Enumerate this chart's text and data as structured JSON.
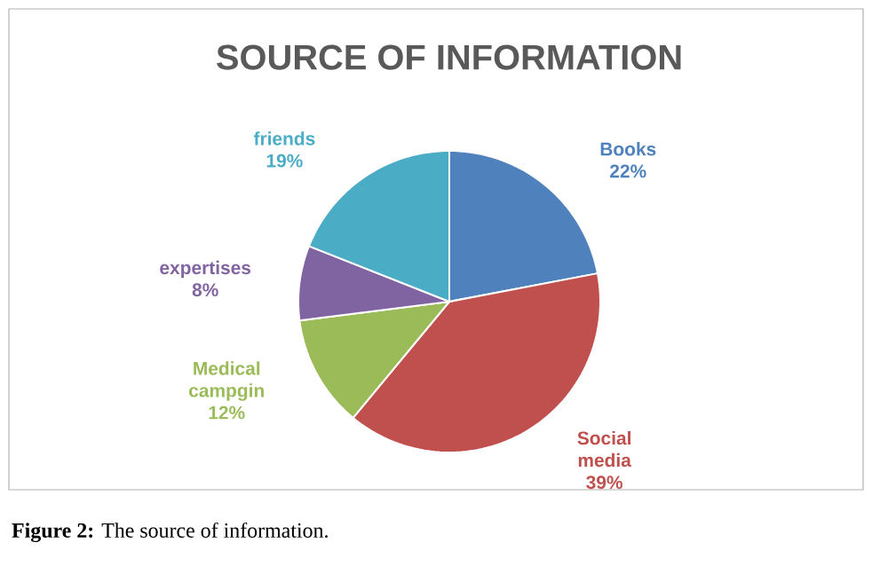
{
  "chart_data": {
    "type": "pie",
    "title": "SOURCE OF INFORMATION",
    "categories": [
      "Books",
      "Social media",
      "Medical campgin",
      "expertises",
      "friends"
    ],
    "values": [
      22,
      39,
      12,
      8,
      19
    ],
    "value_labels": [
      "22%",
      "39%",
      "12%",
      "8%",
      "19%"
    ],
    "colors": [
      "#4f81bd",
      "#c0504d",
      "#9bbb59",
      "#8064a2",
      "#4bacc6"
    ],
    "annotations": [
      "**Figure 2:** The source of information."
    ]
  }
}
